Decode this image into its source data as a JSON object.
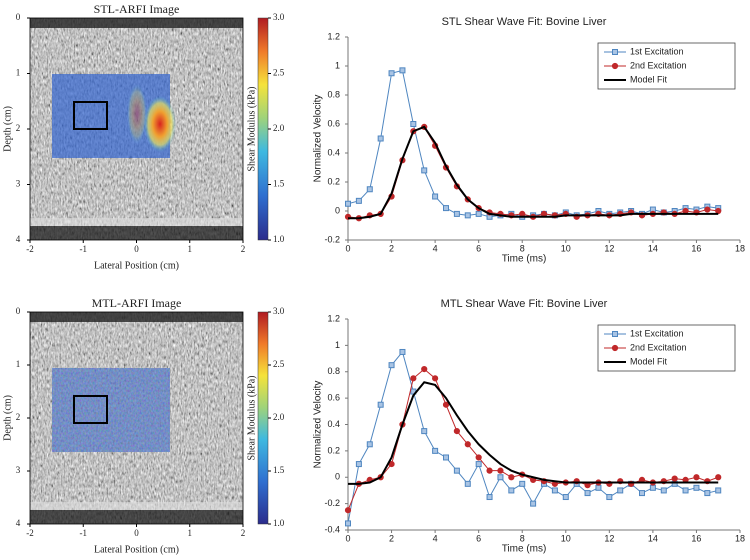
{
  "chart_data": [
    {
      "type": "heatmap",
      "title": "STL-ARFI Image",
      "xlabel": "Lateral Position (cm)",
      "ylabel": "Depth (cm)",
      "xlim": [
        -2,
        2
      ],
      "ylim": [
        0,
        4
      ],
      "y_inverted": true,
      "xticks": [
        -2,
        -1,
        0,
        1,
        2
      ],
      "yticks": [
        0,
        1,
        2,
        3,
        4
      ],
      "colorbar": {
        "label": "Shear Modulus (kPa)",
        "lim": [
          1,
          3
        ],
        "ticks": [
          {
            "value": 1,
            "label": "1.0"
          },
          {
            "value": 1.5,
            "label": "1.5"
          },
          {
            "value": 2,
            "label": "2.0"
          },
          {
            "value": 2.5,
            "label": "2.5"
          },
          {
            "value": 3,
            "label": "3.0"
          }
        ]
      },
      "hotspot": true
    },
    {
      "type": "line",
      "title": "STL Shear Wave Fit: Bovine Liver",
      "xlabel": "Time (ms)",
      "ylabel": "Normalized Velocity",
      "xlim": [
        0,
        18
      ],
      "ylim": [
        -0.2,
        1.2
      ],
      "xticks": [
        0,
        2,
        4,
        6,
        8,
        10,
        12,
        14,
        16,
        18
      ],
      "yticks": [
        -0.2,
        0,
        0.2,
        0.4,
        0.6,
        0.8,
        1,
        1.2
      ],
      "legend": "upper right",
      "x": [
        0,
        0.5,
        1,
        1.5,
        2,
        2.5,
        3,
        3.5,
        4,
        4.5,
        5,
        5.5,
        6,
        6.5,
        7,
        7.5,
        8,
        8.5,
        9,
        9.5,
        10,
        10.5,
        11,
        11.5,
        12,
        12.5,
        13,
        13.5,
        14,
        14.5,
        15,
        15.5,
        16,
        16.5,
        17
      ],
      "series": [
        {
          "name": "1st Excitation",
          "color": "#4f86c0",
          "marker": "square",
          "values": [
            0.05,
            0.07,
            0.15,
            0.5,
            0.95,
            0.97,
            0.6,
            0.28,
            0.1,
            0.02,
            -0.02,
            -0.03,
            -0.02,
            -0.04,
            -0.03,
            -0.02,
            -0.04,
            -0.03,
            -0.02,
            -0.03,
            -0.01,
            -0.03,
            -0.02,
            0,
            -0.02,
            -0.01,
            0,
            -0.02,
            0.01,
            -0.01,
            0,
            0.02,
            0.01,
            0.03,
            0.02
          ]
        },
        {
          "name": "2nd Excitation",
          "color": "#c0282a",
          "marker": "circle",
          "values": [
            -0.04,
            -0.05,
            -0.03,
            -0.02,
            0.1,
            0.35,
            0.55,
            0.58,
            0.45,
            0.3,
            0.17,
            0.08,
            0.02,
            -0.01,
            -0.02,
            -0.03,
            -0.02,
            -0.04,
            -0.02,
            -0.03,
            -0.02,
            -0.04,
            -0.03,
            -0.02,
            -0.03,
            -0.02,
            -0.01,
            -0.03,
            -0.02,
            -0.01,
            -0.02,
            0,
            -0.01,
            0.01,
            0
          ]
        },
        {
          "name": "Model Fit",
          "color": "#000000",
          "marker": "none",
          "values": [
            -0.05,
            -0.05,
            -0.04,
            -0.02,
            0.12,
            0.36,
            0.55,
            0.58,
            0.47,
            0.31,
            0.18,
            0.08,
            0.02,
            -0.02,
            -0.03,
            -0.04,
            -0.04,
            -0.04,
            -0.04,
            -0.04,
            -0.03,
            -0.03,
            -0.03,
            -0.03,
            -0.03,
            -0.03,
            -0.02,
            -0.02,
            -0.02,
            -0.02,
            -0.02,
            -0.02,
            -0.02,
            -0.02,
            -0.02
          ]
        }
      ]
    },
    {
      "type": "heatmap",
      "title": "MTL-ARFI Image",
      "xlabel": "Lateral Position (cm)",
      "ylabel": "Depth (cm)",
      "xlim": [
        -2,
        2
      ],
      "ylim": [
        0,
        4
      ],
      "y_inverted": true,
      "xticks": [
        -2,
        -1,
        0,
        1,
        2
      ],
      "yticks": [
        0,
        1,
        2,
        3,
        4
      ],
      "colorbar": {
        "label": "Shear Modulus (kPa)",
        "lim": [
          1,
          3
        ],
        "ticks": [
          {
            "value": 1,
            "label": "1.0"
          },
          {
            "value": 1.5,
            "label": "1.5"
          },
          {
            "value": 2,
            "label": "2.0"
          },
          {
            "value": 2.5,
            "label": "2.5"
          },
          {
            "value": 3,
            "label": "3.0"
          }
        ]
      },
      "hotspot": false
    },
    {
      "type": "line",
      "title": "MTL Shear Wave Fit: Bovine Liver",
      "xlabel": "Time (ms)",
      "ylabel": "Normalized Velocity",
      "xlim": [
        0,
        18
      ],
      "ylim": [
        -0.4,
        1.2
      ],
      "xticks": [
        0,
        2,
        4,
        6,
        8,
        10,
        12,
        14,
        16,
        18
      ],
      "yticks": [
        -0.4,
        -0.2,
        0,
        0.2,
        0.4,
        0.6,
        0.8,
        1,
        1.2
      ],
      "legend": "upper right",
      "x": [
        0,
        0.5,
        1,
        1.5,
        2,
        2.5,
        3,
        3.5,
        4,
        4.5,
        5,
        5.5,
        6,
        6.5,
        7,
        7.5,
        8,
        8.5,
        9,
        9.5,
        10,
        10.5,
        11,
        11.5,
        12,
        12.5,
        13,
        13.5,
        14,
        14.5,
        15,
        15.5,
        16,
        16.5,
        17
      ],
      "series": [
        {
          "name": "1st Excitation",
          "color": "#4f86c0",
          "marker": "square",
          "values": [
            -0.35,
            0.1,
            0.25,
            0.55,
            0.85,
            0.95,
            0.65,
            0.35,
            0.2,
            0.15,
            0.05,
            -0.05,
            0.1,
            -0.15,
            0,
            -0.1,
            -0.05,
            -0.2,
            -0.05,
            -0.1,
            -0.15,
            -0.05,
            -0.12,
            -0.08,
            -0.15,
            -0.1,
            -0.05,
            -0.12,
            -0.08,
            -0.1,
            -0.05,
            -0.1,
            -0.08,
            -0.12,
            -0.1
          ]
        },
        {
          "name": "2nd Excitation",
          "color": "#c0282a",
          "marker": "circle",
          "values": [
            -0.25,
            -0.05,
            -0.02,
            0,
            0.1,
            0.4,
            0.75,
            0.82,
            0.75,
            0.55,
            0.35,
            0.25,
            0.15,
            0.05,
            0.05,
            0,
            0.02,
            -0.02,
            -0.03,
            -0.05,
            -0.04,
            -0.03,
            -0.06,
            -0.04,
            -0.05,
            -0.03,
            -0.05,
            -0.02,
            -0.04,
            -0.03,
            -0.01,
            -0.02,
            0,
            -0.03,
            0
          ]
        },
        {
          "name": "Model Fit",
          "color": "#000000",
          "marker": "none",
          "values": [
            -0.05,
            -0.05,
            -0.04,
            0,
            0.15,
            0.4,
            0.62,
            0.72,
            0.7,
            0.6,
            0.47,
            0.35,
            0.25,
            0.17,
            0.1,
            0.05,
            0.02,
            0,
            -0.02,
            -0.03,
            -0.04,
            -0.04,
            -0.04,
            -0.04,
            -0.04,
            -0.04,
            -0.04,
            -0.04,
            -0.04,
            -0.04,
            -0.04,
            -0.04,
            -0.04,
            -0.04,
            -0.04
          ]
        }
      ]
    }
  ]
}
